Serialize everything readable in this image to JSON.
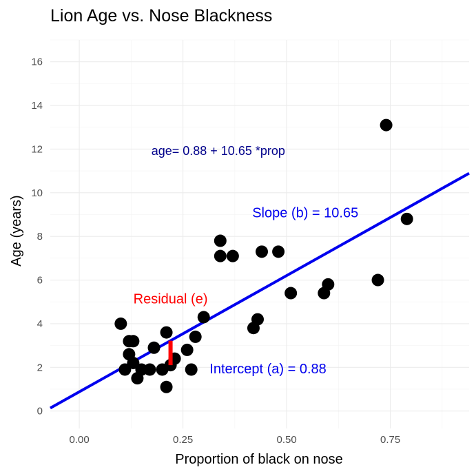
{
  "chart_data": {
    "type": "scatter",
    "title": "Lion Age vs. Nose Blackness",
    "xlabel": "Proportion of black on nose",
    "ylabel": "Age (years)",
    "xlim": [
      -0.07,
      0.94
    ],
    "ylim": [
      -0.8,
      17
    ],
    "x_ticks": [
      0.0,
      0.25,
      0.5,
      0.75
    ],
    "x_tick_labels": [
      "0.00",
      "0.25",
      "0.50",
      "0.75"
    ],
    "y_ticks": [
      0,
      2,
      4,
      6,
      8,
      10,
      12,
      14,
      16
    ],
    "y_tick_labels": [
      "0",
      "2",
      "4",
      "6",
      "8",
      "10",
      "12",
      "14",
      "16"
    ],
    "grid": true,
    "points": {
      "x": [
        0.1,
        0.11,
        0.12,
        0.12,
        0.13,
        0.13,
        0.14,
        0.15,
        0.17,
        0.18,
        0.2,
        0.21,
        0.21,
        0.22,
        0.23,
        0.26,
        0.27,
        0.28,
        0.3,
        0.34,
        0.34,
        0.37,
        0.42,
        0.43,
        0.44,
        0.48,
        0.51,
        0.59,
        0.6,
        0.72,
        0.74,
        0.79
      ],
      "y": [
        4.0,
        1.9,
        3.2,
        2.6,
        3.2,
        2.2,
        1.5,
        1.9,
        1.9,
        2.9,
        1.9,
        1.1,
        3.6,
        2.1,
        2.4,
        2.8,
        1.9,
        3.4,
        4.3,
        7.8,
        7.1,
        7.1,
        3.8,
        4.2,
        7.3,
        7.3,
        5.4,
        5.4,
        5.8,
        6.0,
        13.1,
        8.8
      ],
      "color": "#000000"
    },
    "regression_line": {
      "intercept": 0.88,
      "slope": 10.65,
      "color": "#0000ee"
    },
    "residual_segment": {
      "x": 0.22,
      "y_from": 2.1,
      "y_to": 3.22,
      "color": "#ff0000"
    },
    "annotations": [
      {
        "text": "age= 0.88 + 10.65 *prop",
        "x": 0.335,
        "y": 11.95,
        "color": "#00008b",
        "style": "eq"
      },
      {
        "text": "Slope (b) = 10.65",
        "x": 0.545,
        "y": 9.1,
        "color": "#0000ee",
        "style": "annot"
      },
      {
        "text": "Residual (e)",
        "x": 0.22,
        "y": 5.15,
        "color": "#ff0000",
        "style": "annot"
      },
      {
        "text": "Intercept (a) = 0.88",
        "x": 0.455,
        "y": 1.95,
        "color": "#0000ee",
        "style": "annot"
      }
    ]
  }
}
